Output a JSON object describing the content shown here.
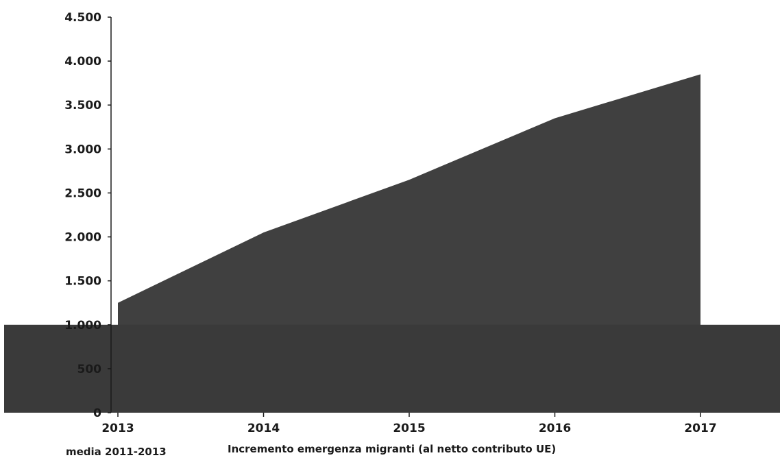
{
  "chart_data": {
    "type": "area",
    "title": "",
    "xlabel": "",
    "ylabel": "",
    "x": [
      "2013",
      "2014",
      "2015",
      "2016",
      "2017"
    ],
    "ylim": [
      0,
      4500
    ],
    "yticks": [
      0,
      500,
      1000,
      1500,
      2000,
      2500,
      3000,
      3500,
      4000,
      4500
    ],
    "ytick_labels": [
      "0",
      "500",
      "1.000",
      "1.500",
      "2.000",
      "2.500",
      "3.000",
      "3.500",
      "4.000",
      "4.500"
    ],
    "grid": false,
    "legend_position": "bottom",
    "series": [
      {
        "name": "media 2011-2013",
        "values": [
          1000,
          1000,
          1000,
          1000,
          1000
        ],
        "color": "#3a3a3a"
      },
      {
        "name": "Incremento emergenza migranti (al netto contributo UE)",
        "values": [
          1250,
          2050,
          2650,
          3350,
          3850
        ],
        "color": "#404040"
      }
    ]
  }
}
